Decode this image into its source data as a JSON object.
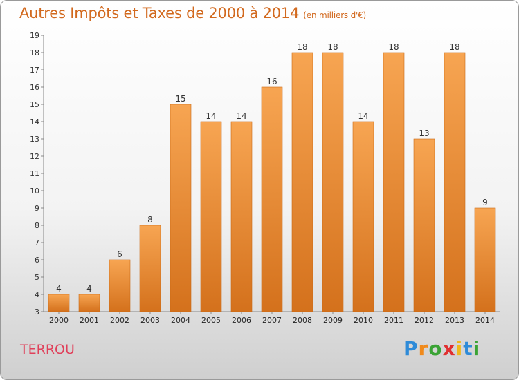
{
  "header": {
    "title": "Autres Impôts et Taxes de 2000 à 2014",
    "unit": "(en milliers d'€)"
  },
  "commune": "TERROU",
  "logo": {
    "text": "Proxiti"
  },
  "colors": {
    "bar_top": "#f7a552",
    "bar_bottom": "#d4711c",
    "bar_edge": "#c86a17",
    "title": "#d2691e",
    "commune": "#e0405a"
  },
  "chart_data": {
    "type": "bar",
    "title": "Autres Impôts et Taxes de 2000 à 2014",
    "subtitle": "(en milliers d'€)",
    "xlabel": "",
    "ylabel": "",
    "categories": [
      "2000",
      "2001",
      "2002",
      "2003",
      "2004",
      "2005",
      "2006",
      "2007",
      "2008",
      "2009",
      "2010",
      "2011",
      "2012",
      "2013",
      "2014"
    ],
    "values": [
      4,
      4,
      6,
      8,
      15,
      14,
      14,
      16,
      18,
      18,
      14,
      18,
      13,
      18,
      9
    ],
    "ylim": [
      3,
      19
    ],
    "yticks": [
      3,
      4,
      5,
      6,
      7,
      8,
      9,
      10,
      11,
      12,
      13,
      14,
      15,
      16,
      17,
      18,
      19
    ],
    "grid": false,
    "data_labels": true
  }
}
